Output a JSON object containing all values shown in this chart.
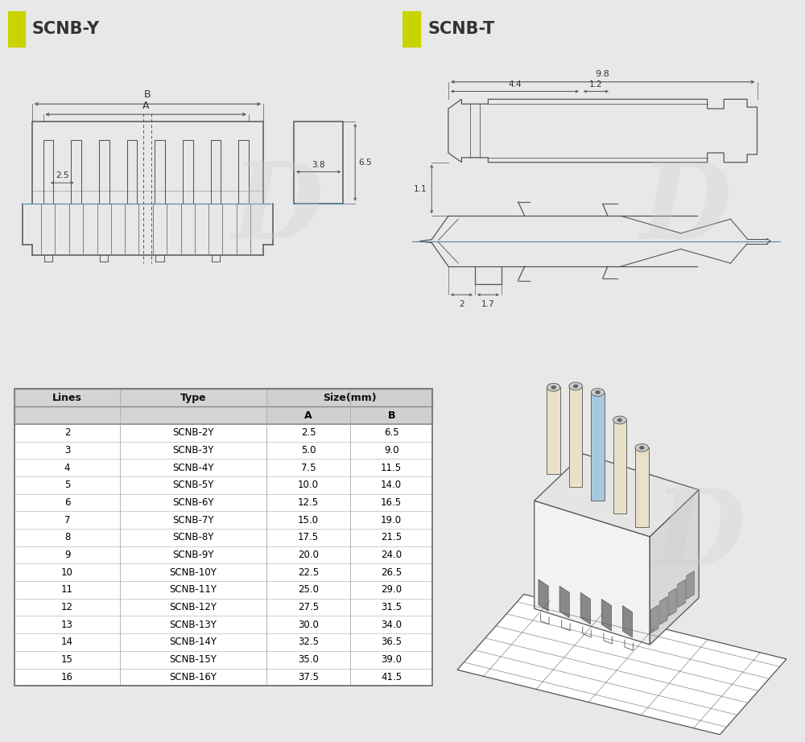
{
  "title_left": "SCNB-Y",
  "title_right": "SCNB-T",
  "title_color": "#333333",
  "icon_color": "#c8d400",
  "page_bg": "#e8e8e8",
  "panel_bg": "#f0f0f0",
  "line_color": "#555555",
  "dim_color": "#333333",
  "blue_line": "#5588aa",
  "table_lines": [
    2,
    3,
    4,
    5,
    6,
    7,
    8,
    9,
    10,
    11,
    12,
    13,
    14,
    15,
    16
  ],
  "table_types": [
    "SCNB-2Y",
    "SCNB-3Y",
    "SCNB-4Y",
    "SCNB-5Y",
    "SCNB-6Y",
    "SCNB-7Y",
    "SCNB-8Y",
    "SCNB-9Y",
    "SCNB-10Y",
    "SCNB-11Y",
    "SCNB-12Y",
    "SCNB-13Y",
    "SCNB-14Y",
    "SCNB-15Y",
    "SCNB-16Y"
  ],
  "table_A": [
    2.5,
    5.0,
    7.5,
    10.0,
    12.5,
    15.0,
    17.5,
    20.0,
    22.5,
    25.0,
    27.5,
    30.0,
    32.5,
    35.0,
    37.5
  ],
  "table_B": [
    6.5,
    9.0,
    11.5,
    14.0,
    16.5,
    19.0,
    21.5,
    24.0,
    26.5,
    29.0,
    31.5,
    34.0,
    36.5,
    39.0,
    41.5
  ],
  "wm_color": "#cccccc",
  "wm_alpha": 0.25
}
